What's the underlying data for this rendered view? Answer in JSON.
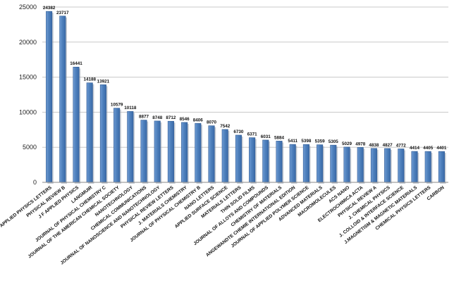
{
  "chart_data": {
    "type": "bar",
    "title": "",
    "xlabel": "",
    "ylabel": "",
    "ylim": [
      0,
      25000
    ],
    "yticks": [
      0,
      5000,
      10000,
      15000,
      20000,
      25000
    ],
    "grid": true,
    "legend": "none",
    "bar_color": "#4f81bd",
    "categories": [
      "APPLIED PHYSICS LETTERS",
      "PHYSICAL REVIEW B",
      "J F APPLIED PHYSICS",
      "LANGMUIR",
      "JOURNAL OF PHYSICAL CHEMISTRY C",
      "JOURNAL OF THE AMERICAN CHEMICAL SOCIETY",
      "NANOTECHNOLOGY",
      "CHEMICAL COMMUNICATIONS",
      "JOURNAL OF NANOSCIENCE AND NANOTECHNOLOGY",
      "PHYSICAL REVIEW LETTERS",
      "J. MATERIALS CHEMISTRY",
      "JOURNAL OF PHYSICAL CHEMISTRY B",
      "NANO LETTERS",
      "APPLIED SURFACE SCIENCE",
      "MATERIALS LETTERS",
      "THIN SOLID FILMS",
      "JOURNAL OF ALLOYS AND COMPOUNDS",
      "CHEMISTRY OF MATERIALS",
      "ANGEWANDTE CHEMIE INTERNATIONAL EDITION",
      "JOURNAL OF APPLIED POLYMER SCIENCE",
      "ADVANCED MATERIALS",
      "MACROMOLECULES",
      "ACS NANO",
      "ELECTROCHIMICA ACTA",
      "PHYSICAL REVIEW A",
      "J. CHEMICAL PHYSICS",
      "J. COLLOID & INTERFACE SCIENCE",
      "J.MAGNETISM & MAGNETIC MATERIALS",
      "CHEMICAL PHYSICS LETTERS",
      "CARBON"
    ],
    "values": [
      24382,
      23717,
      16441,
      14188,
      13921,
      10579,
      10118,
      8877,
      8748,
      8712,
      8546,
      8406,
      8070,
      7542,
      6730,
      6371,
      6031,
      5884,
      5411,
      5398,
      5359,
      5305,
      5029,
      4978,
      4838,
      4827,
      4772,
      4414,
      4405,
      4401
    ]
  }
}
